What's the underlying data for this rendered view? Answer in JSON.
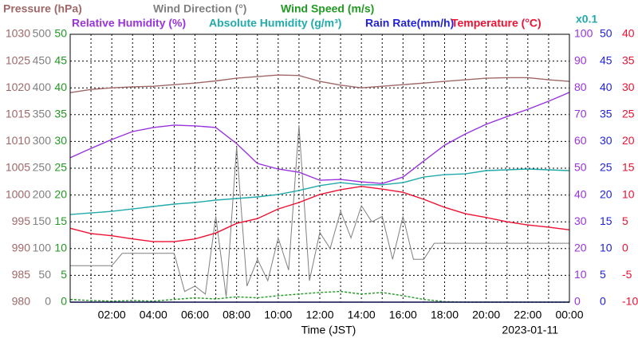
{
  "chart_data": {
    "type": "line",
    "xlabel": "Time (JST)",
    "date": "2023-01-11",
    "annotation": "x0.1",
    "annotation_color": "#22aaaa",
    "grid": true,
    "xlim": [
      0,
      24
    ],
    "xticks": [
      {
        "value": 2,
        "label": "02:00"
      },
      {
        "value": 4,
        "label": "04:00"
      },
      {
        "value": 6,
        "label": "06:00"
      },
      {
        "value": 8,
        "label": "08:00"
      },
      {
        "value": 10,
        "label": "10:00"
      },
      {
        "value": 12,
        "label": "12:00"
      },
      {
        "value": 14,
        "label": "14:00"
      },
      {
        "value": 16,
        "label": "16:00"
      },
      {
        "value": 18,
        "label": "18:00"
      },
      {
        "value": 20,
        "label": "20:00"
      },
      {
        "value": 22,
        "label": "22:00"
      },
      {
        "value": 24,
        "label": "00:00"
      }
    ],
    "xminorticks": [
      1,
      3,
      5,
      7,
      9,
      11,
      13,
      15,
      17,
      19,
      21,
      23
    ],
    "axes": [
      {
        "color": "#a06868",
        "ylim": [
          980,
          1030
        ],
        "yticks": [
          980,
          985,
          990,
          995,
          1000,
          1005,
          1010,
          1015,
          1020,
          1025,
          1030
        ]
      },
      {
        "color": "#808080",
        "ylim": [
          0,
          500
        ],
        "yticks": [
          0,
          50,
          100,
          150,
          200,
          250,
          300,
          350,
          400,
          450,
          500
        ]
      },
      {
        "color": "#229922",
        "ylim": [
          0,
          50
        ],
        "yticks": [
          0,
          5,
          10,
          15,
          20,
          25,
          30,
          35,
          40,
          45,
          50
        ]
      },
      {
        "color": "#9933dd",
        "ylim": [
          0,
          100
        ],
        "yticks": [
          0,
          10,
          20,
          30,
          40,
          50,
          60,
          70,
          80,
          90,
          100
        ]
      },
      {
        "color": "#2222dd",
        "ylim": [
          0,
          50
        ],
        "yticks": [
          0,
          5,
          10,
          15,
          20,
          25,
          30,
          35,
          40,
          45,
          50
        ]
      },
      {
        "color": "#ee1133",
        "ylim": [
          -10,
          40
        ],
        "yticks": [
          -10,
          -5,
          0,
          5,
          10,
          15,
          20,
          25,
          30,
          35,
          40
        ]
      }
    ],
    "series": [
      {
        "name": "Pressure (hPa)",
        "color": "#a06868",
        "axis": 0,
        "x": [
          0,
          1,
          2,
          3,
          4,
          5,
          6,
          7,
          8,
          9,
          10,
          11,
          12,
          13,
          14,
          15,
          16,
          17,
          18,
          19,
          20,
          21,
          22,
          23,
          24
        ],
        "values": [
          1019.1,
          1019.7,
          1020.0,
          1020.2,
          1020.3,
          1020.6,
          1020.9,
          1021.3,
          1021.8,
          1022.1,
          1022.4,
          1022.3,
          1021.2,
          1020.5,
          1020.0,
          1020.3,
          1020.6,
          1020.9,
          1021.2,
          1021.5,
          1021.8,
          1021.9,
          1021.9,
          1021.5,
          1021.2
        ]
      },
      {
        "name": "Wind Direction (°)",
        "color": "#808080",
        "axis": 1,
        "x": [
          0,
          0.5,
          1,
          1.5,
          2,
          2.5,
          3,
          3.5,
          4,
          4.5,
          5,
          5.5,
          6,
          6.5,
          7,
          7.5,
          8,
          8.5,
          9,
          9.5,
          10,
          10.5,
          11,
          11.5,
          12,
          12.5,
          13,
          13.5,
          14,
          14.5,
          15,
          15.5,
          16,
          16.5,
          17,
          17.5,
          18,
          18.5,
          19,
          19.5,
          20,
          20.5,
          21,
          21.5,
          22,
          22.5,
          23,
          23.5,
          24
        ],
        "values": [
          68,
          68,
          68,
          68,
          68,
          91,
          91,
          91,
          91,
          91,
          91,
          20,
          30,
          15,
          160,
          10,
          290,
          30,
          80,
          40,
          120,
          60,
          330,
          40,
          130,
          100,
          170,
          120,
          180,
          150,
          160,
          80,
          160,
          80,
          80,
          110,
          110,
          110,
          110,
          110,
          110,
          110,
          110,
          110,
          110,
          110,
          110,
          110,
          110
        ]
      },
      {
        "name": "Wind Speed (m/s)",
        "color": "#229922",
        "axis": 2,
        "linestyle": "dashed",
        "x": [
          0,
          1,
          2,
          3,
          4,
          5,
          6,
          7,
          8,
          9,
          10,
          11,
          12,
          13,
          14,
          15,
          16,
          17,
          18,
          19,
          20,
          21,
          22,
          23,
          24
        ],
        "values": [
          0.5,
          0.3,
          0.2,
          0.3,
          0.2,
          0.5,
          0.8,
          0.6,
          1,
          0.8,
          1.2,
          1.5,
          1.8,
          2,
          1.5,
          1.8,
          1.2,
          0.5,
          0.1,
          0,
          0,
          0,
          0,
          0,
          0
        ]
      },
      {
        "name": "Relative Humidity (%)",
        "color": "#9933dd",
        "axis": 3,
        "x": [
          0,
          1,
          2,
          3,
          4,
          5,
          6,
          7,
          8,
          9,
          10,
          11,
          12,
          13,
          14,
          15,
          16,
          17,
          18,
          19,
          20,
          21,
          22,
          23,
          24
        ],
        "values": [
          53.9,
          57.4,
          60.7,
          63.7,
          65.2,
          66.1,
          65.8,
          65.2,
          59.2,
          51.8,
          49.7,
          48.5,
          45.5,
          45.8,
          44.9,
          44.3,
          46.7,
          52.7,
          58.6,
          62.8,
          66.4,
          69.3,
          72.0,
          75.0,
          78.3
        ]
      },
      {
        "name": "Absolute Humidity (g/m³)",
        "color": "#22aaaa",
        "axis": 3,
        "x": [
          0,
          1,
          2,
          3,
          4,
          5,
          6,
          7,
          8,
          9,
          10,
          11,
          12,
          13,
          14,
          15,
          16,
          17,
          18,
          19,
          20,
          21,
          22,
          23,
          24
        ],
        "values": [
          32.7,
          33.3,
          33.9,
          34.8,
          35.7,
          36.6,
          37.2,
          38.1,
          38.7,
          39.3,
          40.2,
          41.7,
          43.5,
          44.6,
          43.8,
          43.8,
          44.6,
          46.7,
          47.6,
          47.9,
          49.1,
          49.4,
          49.7,
          49.4,
          49.1
        ]
      },
      {
        "name": "Rain Rate(mm/h)",
        "color": "#2222dd",
        "axis": 4,
        "x": [
          0,
          1,
          2,
          3,
          4,
          5,
          6,
          7,
          8,
          9,
          10,
          11,
          12,
          13,
          14,
          15,
          16,
          17,
          18,
          19,
          20,
          21,
          22,
          23,
          24
        ],
        "values": [
          0,
          0,
          0,
          0,
          0,
          0,
          0,
          0,
          0,
          0,
          0,
          0,
          0,
          0,
          0,
          0,
          0,
          0,
          0,
          0,
          0,
          0,
          0,
          0,
          0
        ]
      },
      {
        "name": "Temperature (°C)",
        "color": "#ee1133",
        "axis": 5,
        "x": [
          0,
          1,
          2,
          3,
          4,
          5,
          6,
          7,
          8,
          9,
          10,
          11,
          12,
          13,
          14,
          15,
          16,
          17,
          18,
          19,
          20,
          21,
          22,
          23,
          24
        ],
        "values": [
          3.8,
          2.8,
          2.4,
          1.8,
          1.3,
          1.3,
          1.8,
          2.9,
          4.7,
          5.6,
          7.4,
          8.6,
          10.1,
          11.0,
          11.6,
          11.1,
          10.5,
          9.2,
          7.7,
          6.5,
          5.8,
          5.0,
          4.4,
          4.0,
          3.5
        ]
      }
    ]
  }
}
